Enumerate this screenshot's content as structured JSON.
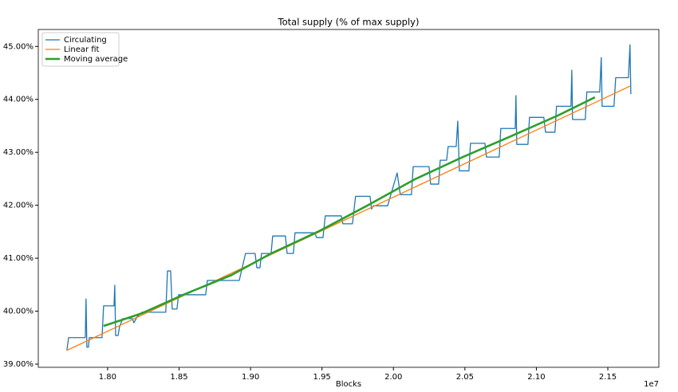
{
  "chart_data": {
    "type": "line",
    "title": "Total supply (% of max supply)",
    "x_label": "Blocks",
    "x_offset_label": "1e7",
    "xlim": [
      1.7515,
      2.1857
    ],
    "ylim": [
      38.94,
      45.32
    ],
    "xticks": [
      {
        "value": 1.8,
        "label": "1.80"
      },
      {
        "value": 1.85,
        "label": "1.85"
      },
      {
        "value": 1.9,
        "label": "1.90"
      },
      {
        "value": 1.95,
        "label": "1.95"
      },
      {
        "value": 2.0,
        "label": "2.00"
      },
      {
        "value": 2.05,
        "label": "2.05"
      },
      {
        "value": 2.1,
        "label": "2.10"
      },
      {
        "value": 2.15,
        "label": "2.15"
      }
    ],
    "yticks": [
      {
        "value": 39,
        "label": "39.00%"
      },
      {
        "value": 40,
        "label": "40.00%"
      },
      {
        "value": 41,
        "label": "41.00%"
      },
      {
        "value": 42,
        "label": "42.00%"
      },
      {
        "value": 43,
        "label": "43.00%"
      },
      {
        "value": 44,
        "label": "44.00%"
      },
      {
        "value": 45,
        "label": "45.00%"
      }
    ],
    "legend": "upper left",
    "series": [
      {
        "name": "Circulating",
        "color": "#1f77b4",
        "width": 1.3,
        "x": [
          1.7715,
          1.7727,
          1.7844,
          1.7849,
          1.7855,
          1.7866,
          1.7872,
          1.7961,
          1.7972,
          1.8045,
          1.805,
          1.8056,
          1.8073,
          1.8084,
          1.8106,
          1.8173,
          1.8184,
          1.8206,
          1.824,
          1.8407,
          1.8419,
          1.8441,
          1.8452,
          1.8485,
          1.8497,
          1.8686,
          1.8698,
          1.8921,
          1.8965,
          1.9032,
          1.9044,
          1.9066,
          1.9077,
          1.9144,
          1.9155,
          1.9244,
          1.9256,
          1.93,
          1.9311,
          1.9451,
          1.9462,
          1.9507,
          1.9523,
          1.9635,
          1.9646,
          1.9713,
          1.9735,
          1.9836,
          1.9847,
          1.9858,
          1.9959,
          2.0026,
          2.0048,
          2.0126,
          2.0138,
          2.0249,
          2.026,
          2.0316,
          2.0327,
          2.0372,
          2.0383,
          2.0439,
          2.045,
          2.0461,
          2.0528,
          2.0539,
          2.064,
          2.0651,
          2.074,
          2.0751,
          2.0852,
          2.0857,
          2.0863,
          2.0941,
          2.0952,
          2.1052,
          2.1064,
          2.113,
          2.1141,
          2.1242,
          2.1248,
          2.1253,
          2.1342,
          2.1353,
          2.1443,
          2.1454,
          2.146,
          2.1543,
          2.1555,
          2.1644,
          2.1655,
          2.1661
        ],
        "values": [
          39.26,
          39.5,
          39.5,
          40.23,
          39.32,
          39.32,
          39.5,
          39.5,
          40.1,
          40.1,
          40.49,
          39.54,
          39.54,
          39.71,
          39.86,
          39.86,
          39.78,
          39.89,
          39.98,
          39.98,
          40.76,
          40.76,
          40.04,
          40.04,
          40.31,
          40.31,
          40.58,
          40.58,
          41.09,
          41.09,
          40.82,
          40.82,
          41.09,
          41.09,
          41.42,
          41.42,
          41.09,
          41.09,
          41.48,
          41.48,
          41.39,
          41.39,
          41.8,
          41.8,
          41.65,
          41.65,
          42.17,
          42.17,
          41.93,
          41.99,
          41.99,
          42.61,
          42.2,
          42.2,
          42.73,
          42.73,
          42.4,
          42.4,
          42.85,
          42.85,
          43.11,
          43.11,
          43.59,
          42.65,
          42.65,
          43.17,
          43.17,
          42.91,
          42.91,
          43.45,
          43.45,
          44.07,
          43.15,
          43.15,
          43.66,
          43.66,
          43.38,
          43.38,
          43.87,
          43.87,
          44.55,
          43.62,
          43.62,
          44.14,
          44.14,
          44.79,
          43.87,
          43.87,
          44.41,
          44.41,
          45.03,
          44.1
        ]
      },
      {
        "name": "Linear fit",
        "color": "#ff7f0e",
        "width": 1.3,
        "x": [
          1.7715,
          2.1655
        ],
        "values": [
          39.26,
          44.25
        ]
      },
      {
        "name": "Moving average",
        "color": "#2ca02c",
        "width": 2.6,
        "x": [
          1.7972,
          1.824,
          1.853,
          1.8865,
          1.9144,
          1.9479,
          1.9814,
          2.0149,
          2.0484,
          2.0819,
          2.1154,
          2.141
        ],
        "values": [
          39.72,
          39.96,
          40.31,
          40.68,
          41.09,
          41.51,
          41.99,
          42.49,
          42.91,
          43.3,
          43.7,
          44.04
        ]
      }
    ]
  }
}
